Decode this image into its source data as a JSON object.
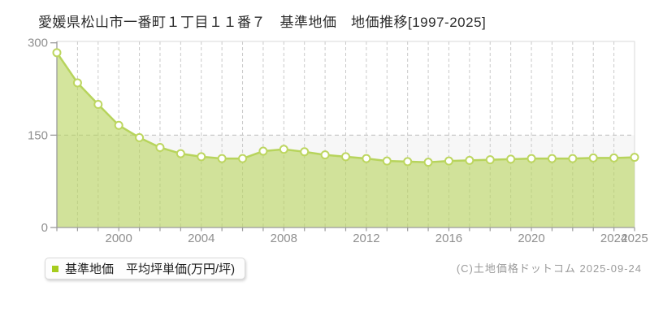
{
  "title": "愛媛県松山市一番町１丁目１１番７　基準地価　地価推移[1997-2025]",
  "legend": {
    "label": "基準地価　平均坪単価(万円/坪)"
  },
  "copyright": "(C)土地価格ドットコム 2025-09-24",
  "chart_data": {
    "type": "area",
    "title": "愛媛県松山市一番町１丁目１１番７ 基準地価 地価推移[1997-2025]",
    "x": [
      1997,
      1998,
      1999,
      2000,
      2001,
      2002,
      2003,
      2004,
      2005,
      2006,
      2007,
      2008,
      2009,
      2010,
      2011,
      2012,
      2013,
      2014,
      2015,
      2016,
      2017,
      2018,
      2019,
      2020,
      2021,
      2022,
      2023,
      2024,
      2025
    ],
    "series": [
      {
        "name": "基準地価 平均坪単価(万円/坪)",
        "values": [
          284,
          235,
          200,
          166,
          146,
          130,
          120,
          115,
          112,
          112,
          124,
          127,
          123,
          118,
          115,
          112,
          108,
          107,
          106,
          108,
          109,
          110,
          111,
          112,
          112,
          112,
          113,
          113,
          114
        ]
      }
    ],
    "xlabel": "",
    "ylabel": "平均坪単価(万円/坪)",
    "ylim": [
      0,
      300
    ],
    "yticks": [
      0,
      150,
      300
    ],
    "xticks": [
      2000,
      2004,
      2008,
      2012,
      2016,
      2020,
      2024,
      2025
    ],
    "grid": {
      "vertical": "dashed-every-year",
      "horizontal_dashed_at": [
        150
      ]
    },
    "legend_position": "bottom-left",
    "colors": {
      "line": "#b7d45c",
      "fill": "#b7d45c",
      "fill_opacity": 0.6,
      "marker_fill": "#ffffff",
      "marker_stroke": "#bdd660",
      "legend_marker": "#a6cc1e",
      "grid": "#c9c9c9",
      "axis": "#9b9b9b",
      "band_below_150": "#f7f7f7",
      "tick_label": "#8f8f8f"
    }
  }
}
